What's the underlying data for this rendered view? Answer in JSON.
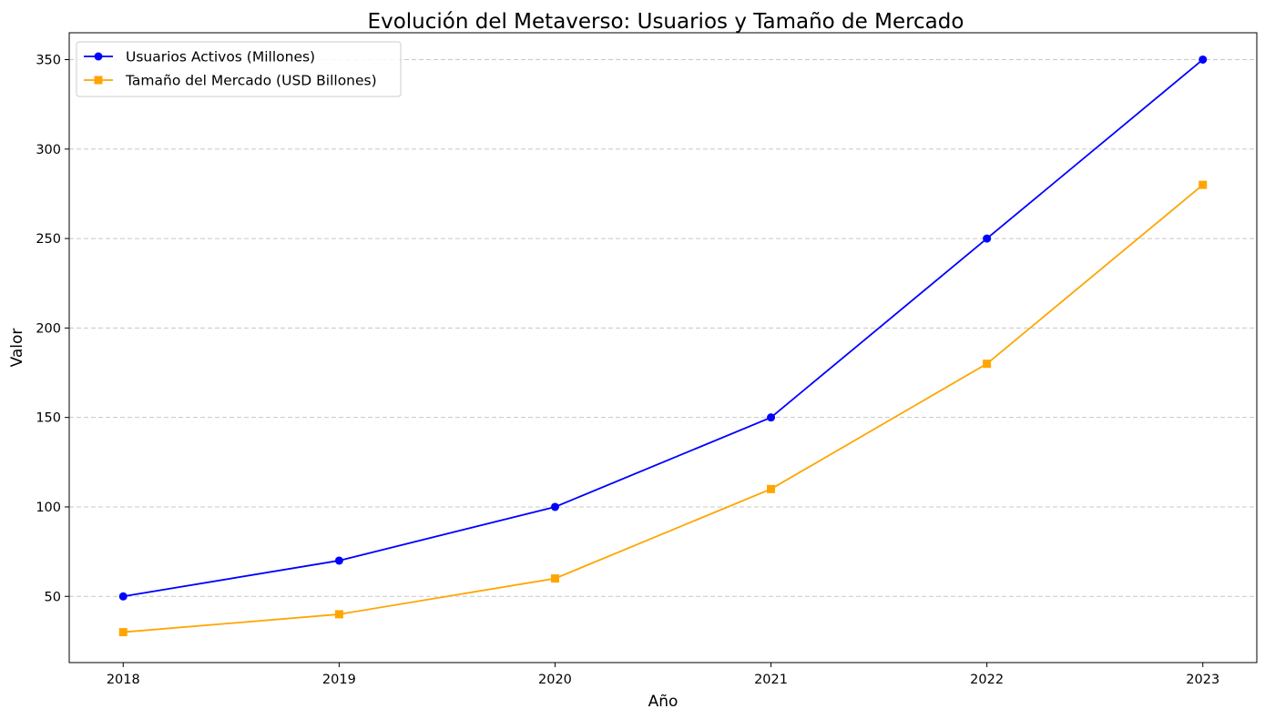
{
  "chart_data": {
    "type": "line",
    "title": "Evolución del Metaverso: Usuarios y Tamaño de Mercado",
    "xlabel": "Año",
    "ylabel": "Valor",
    "x": [
      2018,
      2019,
      2020,
      2021,
      2022,
      2023
    ],
    "xticks": [
      "2018",
      "2019",
      "2020",
      "2021",
      "2022",
      "2023"
    ],
    "yticks": [
      50,
      100,
      150,
      200,
      250,
      300,
      350
    ],
    "xlim": [
      2017.75,
      2023.25
    ],
    "ylim": [
      13,
      365
    ],
    "grid": "y-dashed",
    "legend": "upper-left",
    "series": [
      {
        "name": "Usuarios Activos (Millones)",
        "values": [
          50,
          70,
          100,
          150,
          250,
          350
        ],
        "color": "#0000ff",
        "marker": "circle"
      },
      {
        "name": "Tamaño del Mercado (USD Billones)",
        "values": [
          30,
          40,
          60,
          110,
          180,
          280
        ],
        "color": "#ffa500",
        "marker": "square"
      }
    ]
  }
}
